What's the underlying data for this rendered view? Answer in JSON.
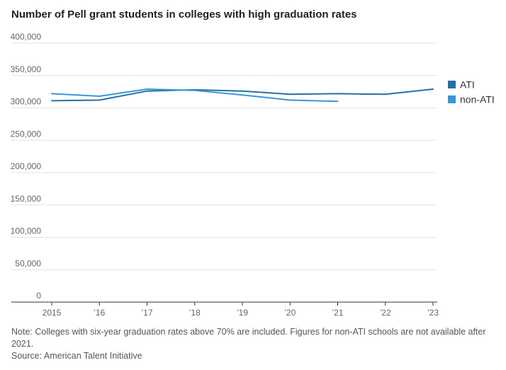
{
  "chart_data": {
    "type": "line",
    "title": "Number of Pell grant students in colleges with high graduation rates",
    "xlabel": "",
    "ylabel": "",
    "categories": [
      "2015",
      "’16",
      "’17",
      "’18",
      "’19",
      "’20",
      "’21",
      "’22",
      "’23"
    ],
    "ylim": [
      0,
      400000
    ],
    "yticks": [
      0,
      50000,
      100000,
      150000,
      200000,
      250000,
      300000,
      350000,
      400000
    ],
    "ytick_labels": [
      "0",
      "50,000",
      "100,000",
      "150,000",
      "200,000",
      "250,000",
      "300,000",
      "350,000",
      "400,000"
    ],
    "grid": true,
    "legend_position": "right",
    "series": [
      {
        "name": "ATI",
        "color": "#2471a3",
        "values": [
          311000,
          312000,
          326000,
          328000,
          326000,
          321000,
          322000,
          321000,
          329000
        ]
      },
      {
        "name": "non-ATI",
        "color": "#3a95d6",
        "values": [
          322000,
          318000,
          329000,
          327000,
          320000,
          312000,
          310000,
          null,
          null
        ]
      }
    ]
  },
  "footer": {
    "note": "Note: Colleges with six-year graduation rates above 70% are included. Figures for non-ATI schools are not available after 2021.",
    "source": "Source: American Talent Initiative"
  }
}
